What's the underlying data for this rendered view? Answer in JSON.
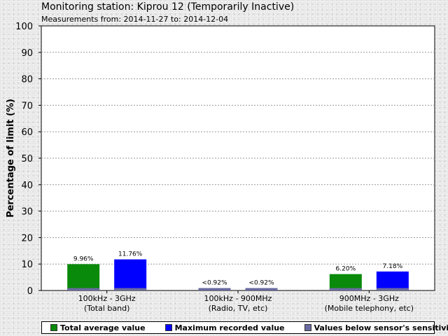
{
  "header": {
    "title": "Monitoring station: Kiprou 12 (Temporarily Inactive)",
    "subtitle": "Measurements from: 2014-11-27 to: 2014-12-04"
  },
  "chart_data": {
    "type": "bar",
    "ylabel": "Percentage of limit (%)",
    "ylim": [
      0,
      100
    ],
    "yticks": [
      0,
      10,
      20,
      30,
      40,
      50,
      60,
      70,
      80,
      90,
      100
    ],
    "grid": true,
    "categories": [
      {
        "line1": "100kHz - 3GHz",
        "line2": "(Total band)"
      },
      {
        "line1": "100kHz - 900MHz",
        "line2": "(Radio, TV, etc)"
      },
      {
        "line1": "900MHz - 3GHz",
        "line2": "(Mobile telephony, etc)"
      }
    ],
    "series": [
      {
        "name": "Total average value",
        "color": "#0a8a0a",
        "values": [
          9.96,
          0.92,
          6.2
        ],
        "labels": [
          "9.96%",
          "<0.92%",
          "6.20%"
        ],
        "below_sensitivity": [
          false,
          true,
          false
        ]
      },
      {
        "name": "Maximum recorded value",
        "color": "#0000ff",
        "values": [
          11.76,
          0.92,
          7.18
        ],
        "labels": [
          "11.76%",
          "<0.92%",
          "7.18%"
        ],
        "below_sensitivity": [
          false,
          true,
          false
        ]
      }
    ],
    "sensitivity": {
      "name": "Values below sensor's sensitivity",
      "color": "#6a6aa0",
      "value": 0.92
    },
    "legend_position": "bottom"
  }
}
